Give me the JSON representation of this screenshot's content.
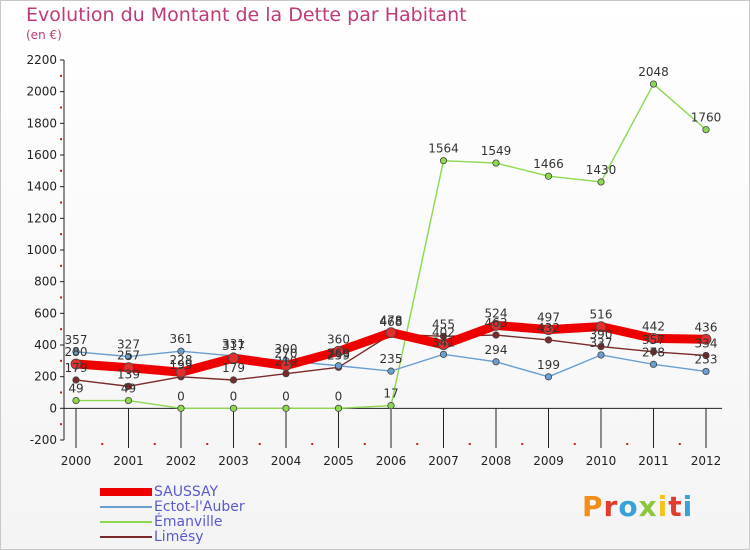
{
  "header": {
    "title": "Evolution du Montant de la Dette par Habitant",
    "unit": "(en €)"
  },
  "logo": {
    "text": "Proxiti",
    "letter_colors": [
      "#f28c1b",
      "#e23c2e",
      "#3aa0d8",
      "#8cc63f",
      "#f4c518",
      "#e23c2e",
      "#3aa0d8"
    ]
  },
  "chart_data": {
    "type": "line",
    "title": "Evolution du Montant de la Dette par Habitant",
    "subtitle": "(en €)",
    "xlabel": "",
    "ylabel": "",
    "x": [
      "2000",
      "2001",
      "2002",
      "2003",
      "2004",
      "2005",
      "2006",
      "2007",
      "2008",
      "2009",
      "2010",
      "2011",
      "2012"
    ],
    "ylim": [
      -200,
      2200
    ],
    "yticks": [
      -200,
      0,
      200,
      400,
      600,
      800,
      1000,
      1200,
      1400,
      1600,
      1800,
      2000,
      2200
    ],
    "grid": false,
    "legend_position": "bottom-left",
    "series": [
      {
        "name": "SAUSSAY",
        "color": "#ee0000",
        "values": [
          280,
          257,
          228,
          317,
          270,
          360,
          478,
          402,
          524,
          497,
          516,
          442,
          436
        ]
      },
      {
        "name": "Ectot-l'Auber",
        "color": "#6a9fd0",
        "values": [
          357,
          327,
          361,
          331,
          300,
          269,
          235,
          341,
          294,
          199,
          337,
          278,
          233
        ]
      },
      {
        "name": "Émanville",
        "color": "#8cd850",
        "values": [
          49,
          49,
          0,
          0,
          0,
          0,
          17,
          1564,
          1549,
          1466,
          1430,
          2048,
          1760
        ]
      },
      {
        "name": "Limésy",
        "color": "#7a2a2a",
        "values": [
          179,
          139,
          199,
          179,
          219,
          259,
          468,
          455,
          463,
          432,
          390,
          357,
          334
        ]
      }
    ]
  }
}
